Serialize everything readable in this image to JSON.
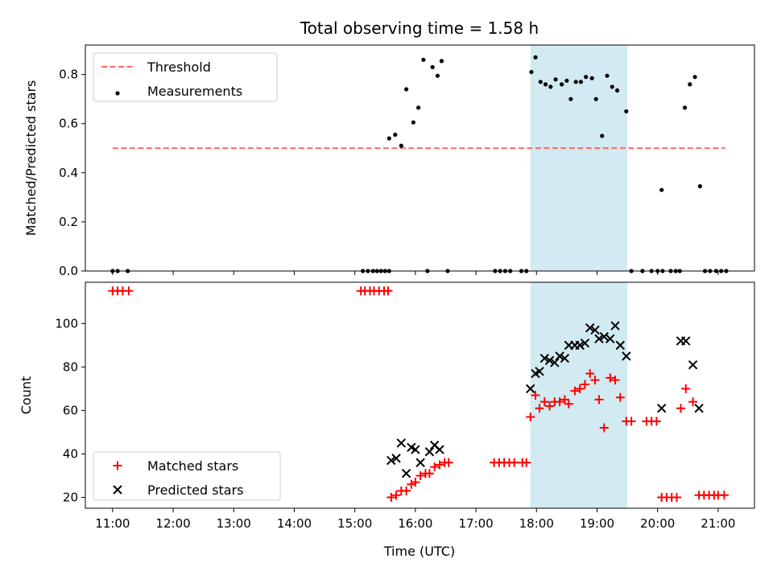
{
  "chart_data": {
    "title": "Total observing time = 1.58 h",
    "xlabel": "Time (UTC)",
    "x_ticks": [
      "11:00",
      "12:00",
      "13:00",
      "14:00",
      "15:00",
      "16:00",
      "17:00",
      "18:00",
      "19:00",
      "20:00",
      "21:00"
    ],
    "xlim": [
      "10:33",
      "21:36"
    ],
    "highlight_span": {
      "start": "17:54",
      "end": "19:30",
      "color": "#add8e6"
    },
    "panels": [
      {
        "type": "scatter",
        "ylabel": "Matched/Predicted stars",
        "ylim": [
          0,
          0.92
        ],
        "y_ticks": [
          0.0,
          0.2,
          0.4,
          0.6,
          0.8
        ],
        "y_tick_labels": [
          "0.0",
          "0.2",
          "0.4",
          "0.6",
          "0.8"
        ],
        "legend": {
          "position": "upper-left",
          "entries": [
            "Threshold",
            "Measurements"
          ]
        },
        "threshold": {
          "name": "Threshold",
          "value": 0.5,
          "x_start": "11:00",
          "x_end": "21:07",
          "color": "#ff6666",
          "style": "dashed"
        },
        "series": [
          {
            "name": "Measurements",
            "color": "#000000",
            "marker": "dot",
            "points": [
              [
                "11:00",
                0.0
              ],
              [
                "11:05",
                0.0
              ],
              [
                "11:15",
                0.0
              ],
              [
                "15:08",
                0.0
              ],
              [
                "15:13",
                0.0
              ],
              [
                "15:18",
                0.0
              ],
              [
                "15:22",
                0.0
              ],
              [
                "15:26",
                0.0
              ],
              [
                "15:30",
                0.0
              ],
              [
                "15:34",
                0.0
              ],
              [
                "15:34",
                0.54
              ],
              [
                "15:40",
                0.555
              ],
              [
                "15:46",
                0.51
              ],
              [
                "15:51",
                0.74
              ],
              [
                "15:58",
                0.605
              ],
              [
                "16:03",
                0.665
              ],
              [
                "16:08",
                0.86
              ],
              [
                "16:12",
                0.0
              ],
              [
                "16:17",
                0.83
              ],
              [
                "16:22",
                0.795
              ],
              [
                "16:26",
                0.855
              ],
              [
                "16:32",
                0.0
              ],
              [
                "17:19",
                0.0
              ],
              [
                "17:24",
                0.0
              ],
              [
                "17:29",
                0.0
              ],
              [
                "17:34",
                0.0
              ],
              [
                "17:45",
                0.0
              ],
              [
                "17:50",
                0.0
              ],
              [
                "17:55",
                0.81
              ],
              [
                "17:59",
                0.87
              ],
              [
                "18:04",
                0.77
              ],
              [
                "18:09",
                0.76
              ],
              [
                "18:14",
                0.75
              ],
              [
                "18:19",
                0.78
              ],
              [
                "18:25",
                0.76
              ],
              [
                "18:30",
                0.775
              ],
              [
                "18:34",
                0.7
              ],
              [
                "18:39",
                0.77
              ],
              [
                "18:44",
                0.77
              ],
              [
                "18:49",
                0.79
              ],
              [
                "18:55",
                0.785
              ],
              [
                "18:59",
                0.7
              ],
              [
                "19:05",
                0.55
              ],
              [
                "19:10",
                0.795
              ],
              [
                "19:15",
                0.75
              ],
              [
                "19:20",
                0.735
              ],
              [
                "19:29",
                0.65
              ],
              [
                "19:34",
                0.0
              ],
              [
                "19:45",
                0.0
              ],
              [
                "19:54",
                0.0
              ],
              [
                "20:00",
                0.0
              ],
              [
                "20:05",
                0.0
              ],
              [
                "20:04",
                0.33
              ],
              [
                "20:13",
                0.0
              ],
              [
                "20:18",
                0.0
              ],
              [
                "20:22",
                0.0
              ],
              [
                "20:27",
                0.665
              ],
              [
                "20:32",
                0.76
              ],
              [
                "20:37",
                0.79
              ],
              [
                "20:42",
                0.345
              ],
              [
                "20:47",
                0.0
              ],
              [
                "20:52",
                0.0
              ],
              [
                "20:58",
                0.0
              ],
              [
                "21:03",
                0.0
              ],
              [
                "21:08",
                0.0
              ]
            ]
          }
        ]
      },
      {
        "type": "scatter",
        "ylabel": "Count",
        "ylim": [
          15,
          119
        ],
        "y_ticks": [
          20,
          40,
          60,
          80,
          100
        ],
        "y_tick_labels": [
          "20",
          "40",
          "60",
          "80",
          "100"
        ],
        "legend": {
          "position": "lower-left",
          "entries": [
            "Matched stars",
            "Predicted stars"
          ]
        },
        "series": [
          {
            "name": "Matched stars",
            "color": "#ff0000",
            "marker": "plus",
            "points": [
              [
                "11:00",
                115
              ],
              [
                "11:05",
                115
              ],
              [
                "11:10",
                115
              ],
              [
                "11:16",
                115
              ],
              [
                "15:06",
                115
              ],
              [
                "15:10",
                115
              ],
              [
                "15:15",
                115
              ],
              [
                "15:19",
                115
              ],
              [
                "15:24",
                115
              ],
              [
                "15:29",
                115
              ],
              [
                "15:33",
                115
              ],
              [
                "15:36",
                20
              ],
              [
                "15:41",
                21
              ],
              [
                "15:46",
                23
              ],
              [
                "15:51",
                23
              ],
              [
                "15:56",
                26
              ],
              [
                "16:00",
                27
              ],
              [
                "16:05",
                30
              ],
              [
                "16:10",
                31
              ],
              [
                "16:14",
                31
              ],
              [
                "16:19",
                34
              ],
              [
                "16:24",
                35
              ],
              [
                "16:29",
                36
              ],
              [
                "16:33",
                36
              ],
              [
                "17:18",
                36
              ],
              [
                "17:23",
                36
              ],
              [
                "17:28",
                36
              ],
              [
                "17:33",
                36
              ],
              [
                "17:38",
                36
              ],
              [
                "17:46",
                36
              ],
              [
                "17:50",
                36
              ],
              [
                "17:54",
                57
              ],
              [
                "17:59",
                67
              ],
              [
                "18:03",
                61
              ],
              [
                "18:08",
                64
              ],
              [
                "18:13",
                62
              ],
              [
                "18:18",
                64
              ],
              [
                "18:23",
                64
              ],
              [
                "18:28",
                65
              ],
              [
                "18:32",
                63
              ],
              [
                "18:38",
                69
              ],
              [
                "18:43",
                70
              ],
              [
                "18:48",
                72
              ],
              [
                "18:53",
                77
              ],
              [
                "18:58",
                74
              ],
              [
                "19:02",
                65
              ],
              [
                "19:07",
                52
              ],
              [
                "19:13",
                75
              ],
              [
                "19:18",
                74
              ],
              [
                "19:23",
                66
              ],
              [
                "19:29",
                55
              ],
              [
                "19:34",
                55
              ],
              [
                "19:49",
                55
              ],
              [
                "19:54",
                55
              ],
              [
                "19:59",
                55
              ],
              [
                "20:04",
                20
              ],
              [
                "20:09",
                20
              ],
              [
                "20:14",
                20
              ],
              [
                "20:19",
                20
              ],
              [
                "20:23",
                61
              ],
              [
                "20:28",
                70
              ],
              [
                "20:35",
                64
              ],
              [
                "20:41",
                21
              ],
              [
                "20:46",
                21
              ],
              [
                "20:51",
                21
              ],
              [
                "20:56",
                21
              ],
              [
                "21:00",
                21
              ],
              [
                "21:06",
                21
              ]
            ]
          },
          {
            "name": "Predicted stars",
            "color": "#000000",
            "marker": "x",
            "points": [
              [
                "15:36",
                37
              ],
              [
                "15:41",
                38
              ],
              [
                "15:46",
                45
              ],
              [
                "15:51",
                31
              ],
              [
                "15:56",
                43
              ],
              [
                "16:00",
                42
              ],
              [
                "16:05",
                36
              ],
              [
                "16:14",
                41
              ],
              [
                "16:19",
                44
              ],
              [
                "16:24",
                42
              ],
              [
                "17:54",
                70
              ],
              [
                "17:59",
                77
              ],
              [
                "18:03",
                78
              ],
              [
                "18:08",
                84
              ],
              [
                "18:13",
                83
              ],
              [
                "18:18",
                82
              ],
              [
                "18:23",
                85
              ],
              [
                "18:28",
                84
              ],
              [
                "18:32",
                90
              ],
              [
                "18:38",
                90
              ],
              [
                "18:43",
                90
              ],
              [
                "18:48",
                91
              ],
              [
                "18:53",
                98
              ],
              [
                "18:58",
                97
              ],
              [
                "19:02",
                93
              ],
              [
                "19:07",
                94
              ],
              [
                "19:13",
                93
              ],
              [
                "19:18",
                99
              ],
              [
                "19:23",
                90
              ],
              [
                "19:29",
                85
              ],
              [
                "20:04",
                61
              ],
              [
                "20:23",
                92
              ],
              [
                "20:28",
                92
              ],
              [
                "20:35",
                81
              ],
              [
                "20:41",
                61
              ]
            ]
          }
        ]
      }
    ]
  }
}
